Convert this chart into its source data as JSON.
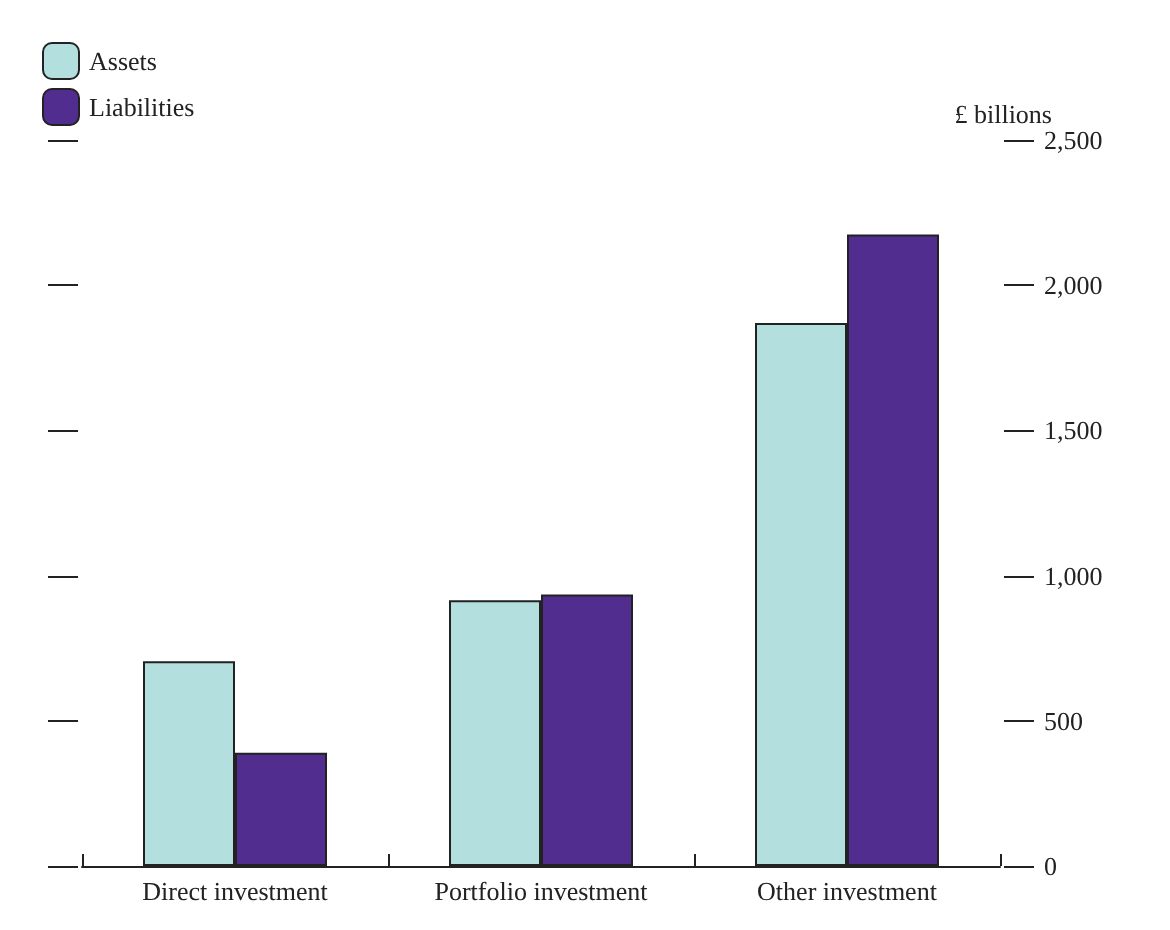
{
  "chart_data": {
    "type": "bar",
    "ylabel": "£ billions",
    "categories": [
      "Direct investment",
      "Portfolio investment",
      "Other investment"
    ],
    "series": [
      {
        "name": "Assets",
        "color": "#b3dfdf",
        "values": [
          705,
          915,
          1870
        ]
      },
      {
        "name": "Liabilities",
        "color": "#512d8f",
        "values": [
          390,
          935,
          2175
        ]
      }
    ],
    "ylim": [
      0,
      2500
    ],
    "yticks": [
      0,
      500,
      {
        "value": 1000,
        "label": "1,000"
      },
      {
        "value": 1500,
        "label": "1,500"
      },
      {
        "value": 2000,
        "label": "2,000"
      },
      {
        "value": 2500,
        "label": "2,500"
      }
    ],
    "grid": false,
    "legend": "top left"
  }
}
